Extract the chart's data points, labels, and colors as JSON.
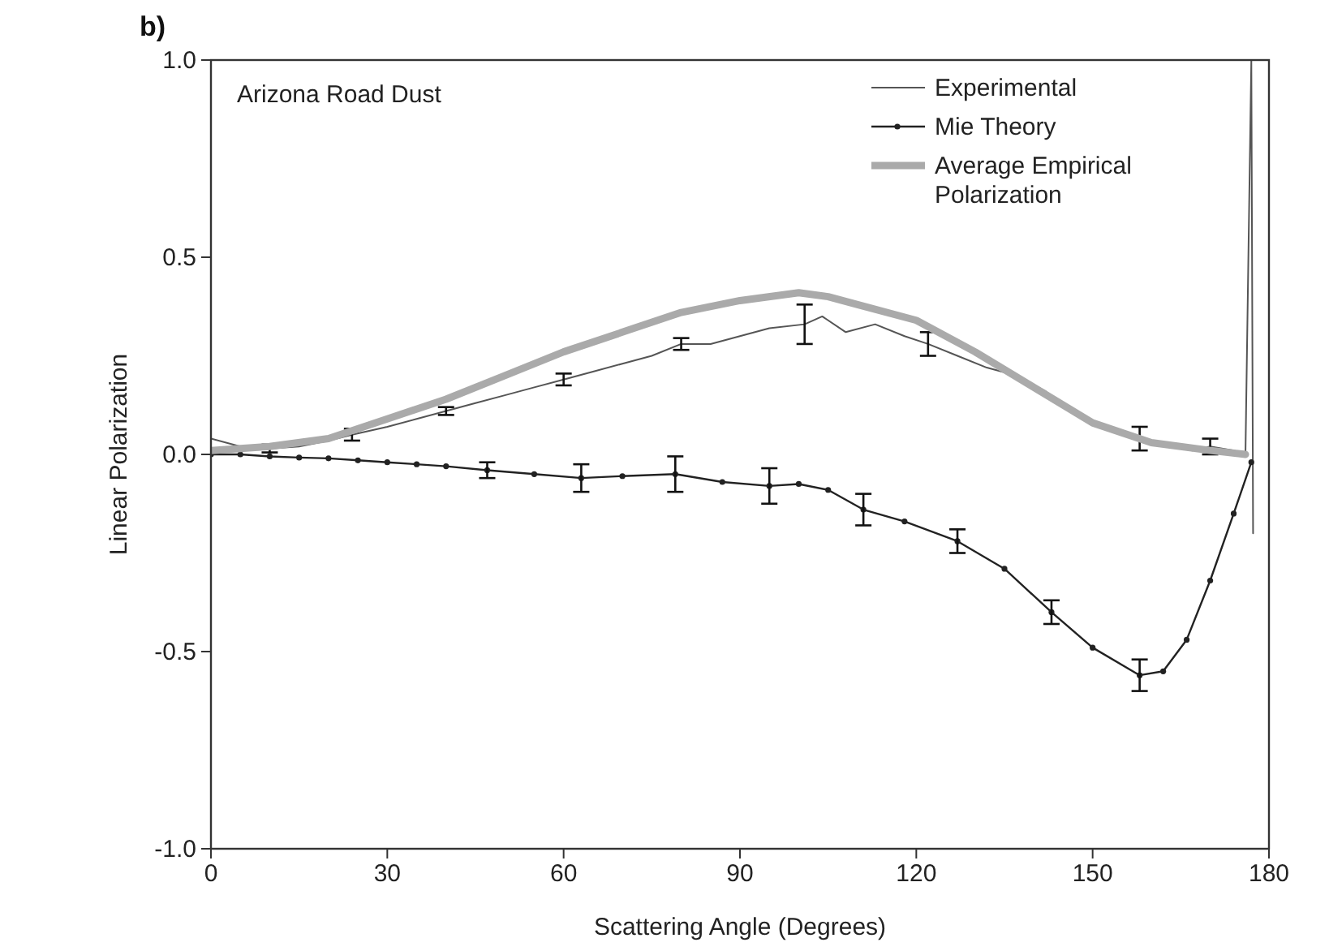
{
  "chart_data": {
    "type": "line",
    "xlabel": "Scattering Angle (Degrees)",
    "ylabel": "Linear Polarization",
    "annotations": [
      "b)",
      "Arizona Road Dust"
    ],
    "xlim": [
      0,
      180
    ],
    "ylim": [
      -1,
      1
    ],
    "xticks": [
      0,
      30,
      60,
      90,
      120,
      150,
      180
    ],
    "yticks": [
      {
        "value": -1,
        "label": "-1.0"
      },
      {
        "value": -0.5,
        "label": "-0.5"
      },
      {
        "value": 0,
        "label": "0.0"
      },
      {
        "value": 0.5,
        "label": "0.5"
      },
      {
        "value": 1,
        "label": "1.0"
      }
    ],
    "grid": false,
    "legend": "top right",
    "series": [
      {
        "name": "Experimental",
        "color": "#555555",
        "marker": "none",
        "x": [
          0,
          5,
          10,
          15,
          20,
          24,
          30,
          35,
          40,
          45,
          50,
          55,
          60,
          65,
          70,
          75,
          80,
          85,
          90,
          95,
          101,
          104,
          108,
          113,
          118,
          122,
          127,
          132,
          137,
          142,
          147,
          152,
          158,
          163,
          167,
          170,
          174,
          176,
          177,
          177.3
        ],
        "values": [
          0.04,
          0.02,
          0.015,
          0.02,
          0.035,
          0.05,
          0.07,
          0.09,
          0.11,
          0.13,
          0.15,
          0.17,
          0.19,
          0.21,
          0.23,
          0.25,
          0.28,
          0.28,
          0.3,
          0.32,
          0.33,
          0.35,
          0.31,
          0.33,
          0.3,
          0.28,
          0.25,
          0.22,
          0.2,
          0.16,
          0.1,
          0.07,
          0.04,
          0.02,
          0.01,
          0.02,
          0.01,
          0,
          1,
          -0.2
        ],
        "errors": [
          null,
          null,
          0.01,
          null,
          null,
          0.015,
          null,
          null,
          0.01,
          null,
          null,
          null,
          0.015,
          null,
          null,
          null,
          0.015,
          null,
          null,
          null,
          0.05,
          null,
          null,
          null,
          null,
          0.03,
          null,
          null,
          null,
          null,
          null,
          null,
          0.03,
          null,
          null,
          0.02,
          null,
          null,
          null,
          null
        ]
      },
      {
        "name": "Mie Theory",
        "color": "#222222",
        "marker": "circle",
        "x": [
          0,
          5,
          10,
          15,
          20,
          25,
          30,
          35,
          40,
          47,
          55,
          63,
          70,
          79,
          87,
          95,
          100,
          105,
          111,
          118,
          127,
          135,
          143,
          150,
          158,
          162,
          166,
          170,
          174,
          177
        ],
        "values": [
          0,
          0,
          -0.005,
          -0.008,
          -0.01,
          -0.015,
          -0.02,
          -0.025,
          -0.03,
          -0.04,
          -0.05,
          -0.06,
          -0.055,
          -0.05,
          -0.07,
          -0.08,
          -0.075,
          -0.09,
          -0.14,
          -0.17,
          -0.22,
          -0.29,
          -0.4,
          -0.49,
          -0.56,
          -0.55,
          -0.47,
          -0.32,
          -0.15,
          -0.02
        ],
        "errors": [
          null,
          null,
          null,
          null,
          null,
          null,
          null,
          null,
          null,
          0.02,
          null,
          0.035,
          null,
          0.045,
          null,
          0.045,
          null,
          null,
          0.04,
          null,
          0.03,
          null,
          0.03,
          null,
          0.04,
          null,
          null,
          null,
          null,
          null
        ]
      },
      {
        "name": "Average Empirical Polarization",
        "color": "#aaaaaa",
        "marker": "none",
        "x": [
          0,
          10,
          20,
          30,
          40,
          50,
          60,
          70,
          80,
          90,
          100,
          105,
          110,
          120,
          130,
          140,
          150,
          160,
          170,
          176
        ],
        "values": [
          0.01,
          0.02,
          0.04,
          0.09,
          0.14,
          0.2,
          0.26,
          0.31,
          0.36,
          0.39,
          0.41,
          0.4,
          0.38,
          0.34,
          0.26,
          0.17,
          0.08,
          0.03,
          0.01,
          0
        ]
      }
    ]
  }
}
